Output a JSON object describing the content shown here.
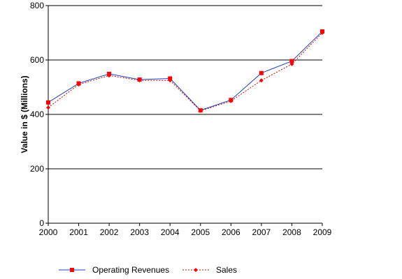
{
  "chart_data": {
    "type": "line",
    "title": "",
    "xlabel": "",
    "ylabel": "Value in $ (Millions)",
    "categories": [
      "2000",
      "2001",
      "2002",
      "2003",
      "2004",
      "2005",
      "2006",
      "2007",
      "2008",
      "2009"
    ],
    "yticks": [
      "0",
      "200",
      "400",
      "600",
      "800"
    ],
    "ylim": [
      0,
      800
    ],
    "grid": "horizontal",
    "legend_position": "bottom",
    "series": [
      {
        "name": "Operating Revenues",
        "values": [
          444,
          514,
          549,
          528,
          532,
          415,
          453,
          552,
          596,
          705
        ],
        "color": "#1f3fbf",
        "marker_color": "#ff0000",
        "marker": "square",
        "line_style": "solid"
      },
      {
        "name": "Sales",
        "values": [
          425,
          510,
          543,
          525,
          525,
          413,
          449,
          525,
          585,
          700
        ],
        "color": "#cc0000",
        "marker_color": "#ff0000",
        "marker": "diamond",
        "line_style": "dotted"
      }
    ]
  }
}
